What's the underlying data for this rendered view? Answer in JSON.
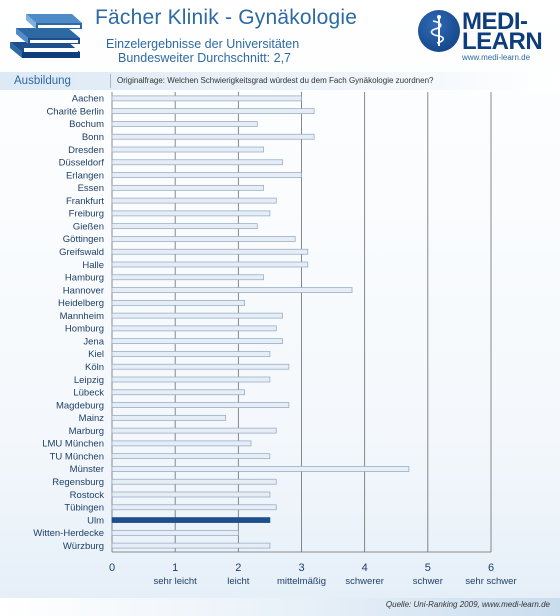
{
  "header": {
    "title": "Fächer Klinik - Gynäkologie",
    "subtitle_line1": "Einzelergebnisse der Universitäten",
    "subtitle_line2": "Bundesweiter Durchschnitt: 2,7",
    "logo_line1": "MEDI-",
    "logo_line2": "LEARN",
    "logo_url": "www.medi-learn.de"
  },
  "band": {
    "section": "Ausbildung",
    "question": "Originalfrage: Welchen Schwierigkeitsgrad würdest du dem Fach Gynäkologie zuordnen?"
  },
  "footer": {
    "source": "Quelle: Uni-Ranking 2009, www.medi-learn.de"
  },
  "colors": {
    "bar_fill": "#e6edf5",
    "bar_stroke": "#8da6c2",
    "highlight_fill": "#1d4f8c",
    "text": "#1f3f66",
    "brand": "#0e3d7c"
  },
  "chart_data": {
    "type": "bar",
    "orientation": "horizontal",
    "categories": [
      "Aachen",
      "Charité Berlin",
      "Bochum",
      "Bonn",
      "Dresden",
      "Düsseldorf",
      "Erlangen",
      "Essen",
      "Frankfurt",
      "Freiburg",
      "Gießen",
      "Göttingen",
      "Greifswald",
      "Halle",
      "Hamburg",
      "Hannover",
      "Heidelberg",
      "Mannheim",
      "Homburg",
      "Jena",
      "Kiel",
      "Köln",
      "Leipzig",
      "Lübeck",
      "Magdeburg",
      "Mainz",
      "Marburg",
      "LMU München",
      "TU München",
      "Münster",
      "Regensburg",
      "Rostock",
      "Tübingen",
      "Ulm",
      "Witten-Herdecke",
      "Würzburg"
    ],
    "values": [
      3.0,
      3.2,
      2.3,
      3.2,
      2.4,
      2.7,
      3.0,
      2.4,
      2.6,
      2.5,
      2.3,
      2.9,
      3.1,
      3.1,
      2.4,
      3.8,
      2.1,
      2.7,
      2.6,
      2.7,
      2.5,
      2.8,
      2.5,
      2.1,
      2.8,
      1.8,
      2.6,
      2.2,
      2.5,
      4.7,
      2.6,
      2.5,
      2.6,
      2.5,
      2.0,
      2.5
    ],
    "highlight": "Ulm",
    "xlim": [
      0,
      6
    ],
    "x_ticks": [
      "0",
      "1",
      "2",
      "3",
      "4",
      "5",
      "6"
    ],
    "x_tick_words": [
      "sehr leicht",
      "leicht",
      "mittelmäßig",
      "schwerer",
      "schwer",
      "sehr schwer"
    ],
    "grid": true
  }
}
